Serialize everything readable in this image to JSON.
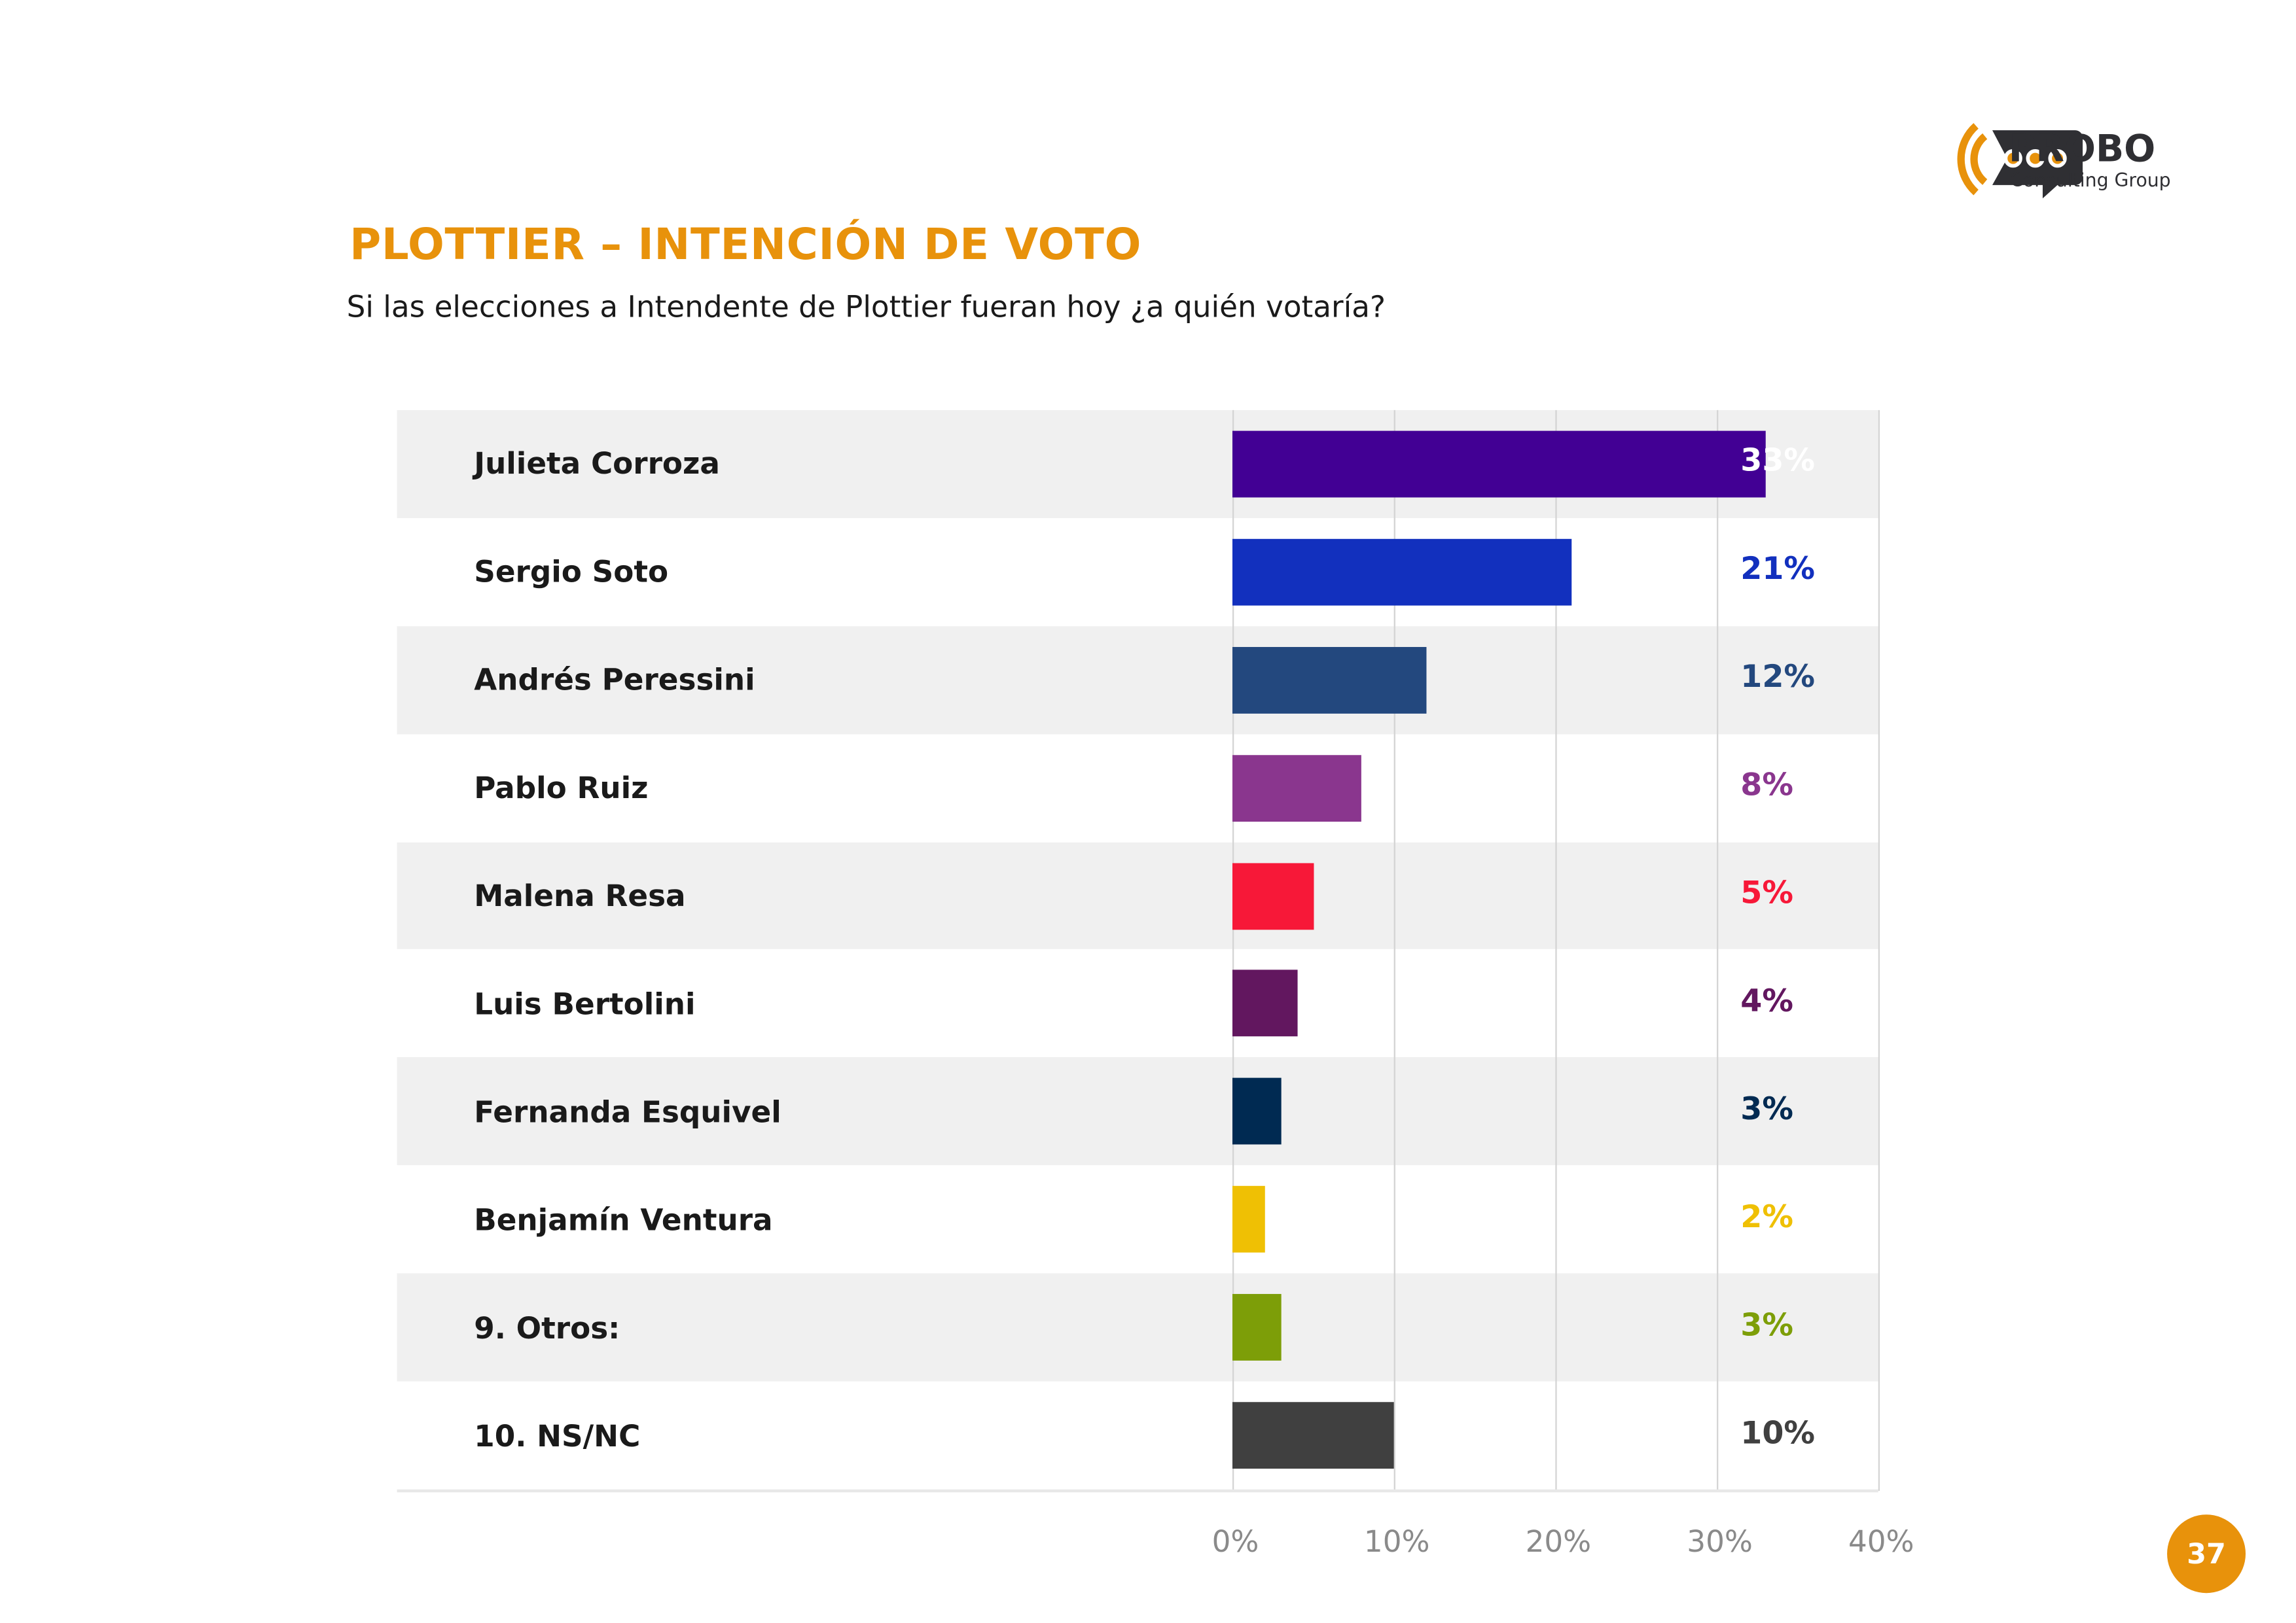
{
  "header": {
    "title": "PLOTTIER – INTENCIÓN DE VOTO",
    "subtitle": "Si las elecciones a Intendente de Plottier fueran hoy ¿a quién votaría?"
  },
  "logo": {
    "name": "PROBO",
    "tagline": "Consulting Group",
    "accent": "#E8920B",
    "dark": "#2F2F33"
  },
  "page_number": "37",
  "chart_data": {
    "type": "bar",
    "orientation": "horizontal",
    "categories": [
      "Julieta Corroza",
      "Sergio Soto",
      "Andrés Peressini",
      "Pablo Ruiz",
      "Malena Resa",
      "Luis Bertolini",
      "Fernanda Esquivel",
      "Benjamín Ventura",
      "9. Otros:",
      "10. NS/NC"
    ],
    "values": [
      33,
      21,
      12,
      8,
      5,
      4,
      3,
      2,
      3,
      10
    ],
    "value_labels": [
      "33%",
      "21%",
      "12%",
      "8%",
      "5%",
      "4%",
      "3%",
      "2%",
      "3%",
      "10%"
    ],
    "colors": [
      "#420094",
      "#1230BE",
      "#23487E",
      "#8A368E",
      "#F71838",
      "#62175F",
      "#002A52",
      "#EFC004",
      "#7D9E08",
      "#404040"
    ],
    "xlim": [
      0,
      40
    ],
    "xticks": [
      "0%",
      "10%",
      "20%",
      "30%",
      "40%"
    ],
    "grid": true,
    "unit": "%"
  }
}
